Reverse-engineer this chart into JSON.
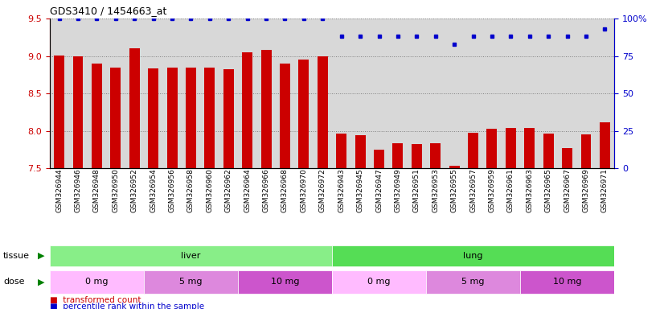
{
  "title": "GDS3410 / 1454663_at",
  "samples": [
    "GSM326944",
    "GSM326946",
    "GSM326948",
    "GSM326950",
    "GSM326952",
    "GSM326954",
    "GSM326956",
    "GSM326958",
    "GSM326960",
    "GSM326962",
    "GSM326964",
    "GSM326966",
    "GSM326968",
    "GSM326970",
    "GSM326972",
    "GSM326943",
    "GSM326945",
    "GSM326947",
    "GSM326949",
    "GSM326951",
    "GSM326953",
    "GSM326955",
    "GSM326957",
    "GSM326959",
    "GSM326961",
    "GSM326963",
    "GSM326965",
    "GSM326967",
    "GSM326969",
    "GSM326971"
  ],
  "bar_values": [
    9.01,
    9.0,
    8.9,
    8.85,
    9.1,
    8.83,
    8.84,
    8.84,
    8.84,
    8.82,
    9.05,
    9.08,
    8.9,
    8.95,
    9.0,
    7.97,
    7.94,
    7.75,
    7.84,
    7.83,
    7.84,
    7.53,
    7.98,
    8.03,
    8.04,
    8.04,
    7.97,
    7.77,
    7.95,
    8.12
  ],
  "percentile_values": [
    100,
    100,
    100,
    100,
    100,
    100,
    100,
    100,
    100,
    100,
    100,
    100,
    100,
    100,
    100,
    88,
    88,
    88,
    88,
    88,
    88,
    83,
    88,
    88,
    88,
    88,
    88,
    88,
    88,
    93
  ],
  "tissue_groups": [
    {
      "label": "liver",
      "start": 0,
      "end": 14,
      "color": "#88ee88"
    },
    {
      "label": "lung",
      "start": 15,
      "end": 29,
      "color": "#55dd55"
    }
  ],
  "dose_groups": [
    {
      "label": "0 mg",
      "start": 0,
      "end": 4,
      "color": "#ffbbff"
    },
    {
      "label": "5 mg",
      "start": 5,
      "end": 9,
      "color": "#dd88dd"
    },
    {
      "label": "10 mg",
      "start": 10,
      "end": 14,
      "color": "#cc55cc"
    },
    {
      "label": "0 mg",
      "start": 15,
      "end": 19,
      "color": "#ffbbff"
    },
    {
      "label": "5 mg",
      "start": 20,
      "end": 24,
      "color": "#dd88dd"
    },
    {
      "label": "10 mg",
      "start": 25,
      "end": 29,
      "color": "#cc55cc"
    }
  ],
  "bar_color": "#cc0000",
  "dot_color": "#0000cc",
  "ylim_left": [
    7.5,
    9.5
  ],
  "ylim_right": [
    0,
    100
  ],
  "yticks_left": [
    7.5,
    8.0,
    8.5,
    9.0,
    9.5
  ],
  "yticks_right": [
    0,
    25,
    50,
    75,
    100
  ],
  "plot_bg_color": "#d8d8d8",
  "fig_bg_color": "#ffffff",
  "bar_width": 0.55
}
